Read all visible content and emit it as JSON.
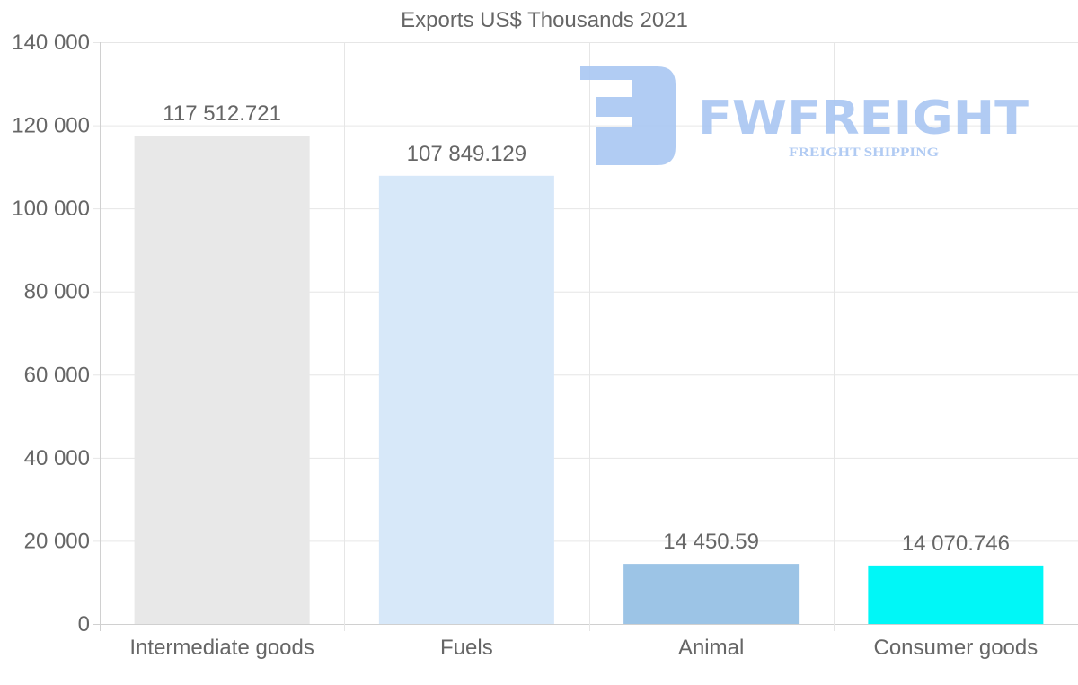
{
  "chart_data": {
    "type": "bar",
    "title": "Exports US$ Thousands 2021",
    "xlabel": "",
    "ylabel": "",
    "categories": [
      "Intermediate goods",
      "Fuels",
      "Animal",
      "Consumer goods"
    ],
    "values": [
      117512.721,
      107849.129,
      14450.59,
      14070.746
    ],
    "value_labels": [
      "117 512.721",
      "107 849.129",
      "14 450.59",
      "14 070.746"
    ],
    "colors": [
      "#e8e8e8",
      "#d7e8f9",
      "#9cc4e6",
      "#00f7f7"
    ],
    "ylim": [
      0,
      140000
    ],
    "yticks": [
      0,
      20000,
      40000,
      60000,
      80000,
      100000,
      120000,
      140000
    ],
    "ytick_labels": [
      "0",
      "20 000",
      "40 000",
      "60 000",
      "80 000",
      "100 000",
      "120 000",
      "140 000"
    ],
    "grid": true,
    "legend": "none"
  },
  "watermark": {
    "brand": "FWFREIGHT",
    "tagline": "FREIGHT SHIPPING",
    "color": "#a9c6f2"
  }
}
